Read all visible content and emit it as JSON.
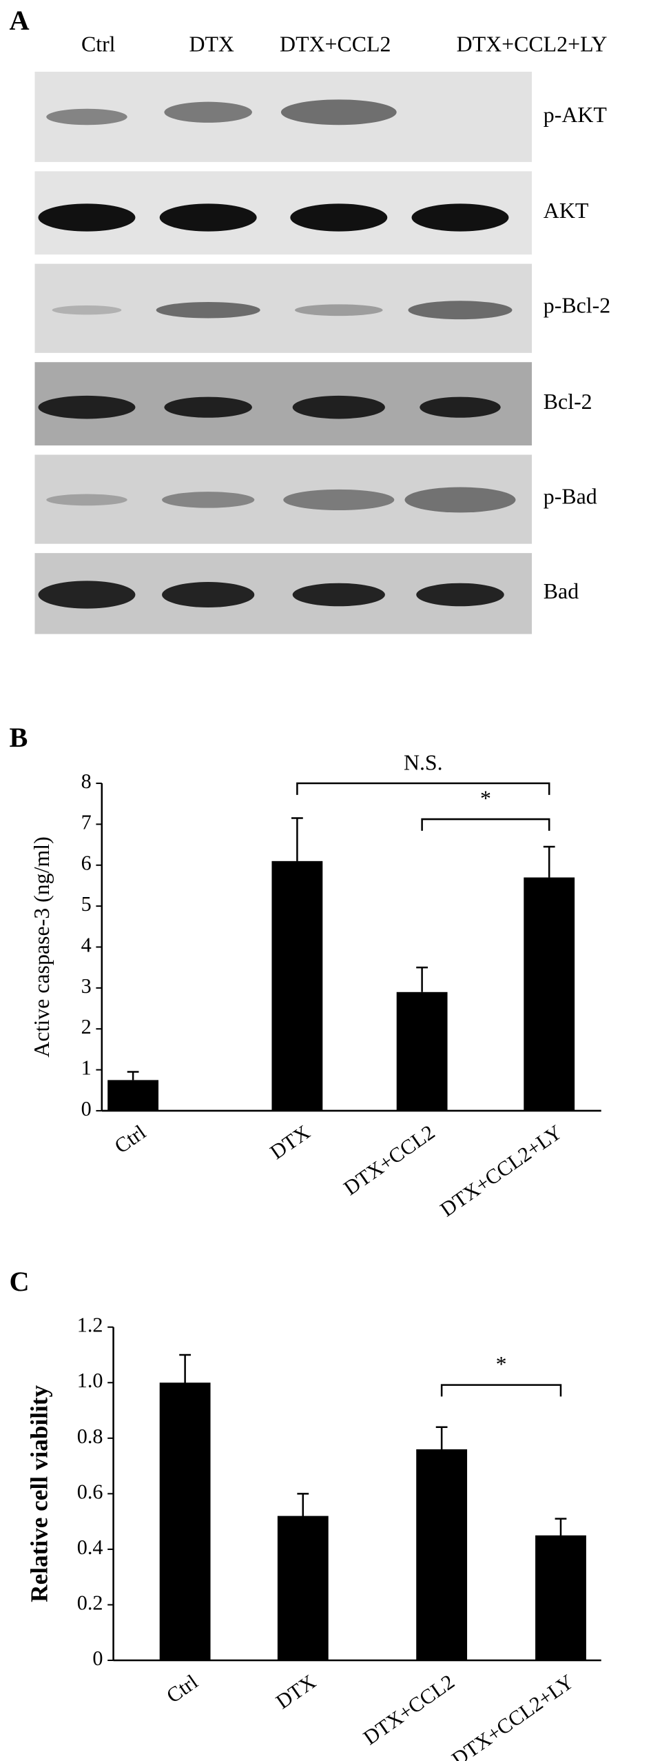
{
  "blot": {
    "panel": "A",
    "lanes": [
      "Ctrl",
      "DTX",
      "DTX+CCL2",
      "DTX+CCL2+LY"
    ],
    "bands": [
      "p-AKT",
      "AKT",
      "p-Bcl-2",
      "Bcl-2",
      "p-Bad",
      "Bad"
    ]
  },
  "chart_data": [
    {
      "type": "bar",
      "panel": "B",
      "ylabel": "Active caspase-3 (ng/ml)",
      "categories": [
        "Ctrl",
        "DTX",
        "DTX+CCL2",
        "DTX+CCL2+LY"
      ],
      "values": [
        0.75,
        6.1,
        2.9,
        5.7
      ],
      "errors": [
        0.2,
        1.05,
        0.6,
        0.75
      ],
      "color": "#000000",
      "ylim": [
        0,
        8
      ],
      "yticks": [
        0,
        1,
        2,
        3,
        4,
        5,
        6,
        7,
        8
      ],
      "annotations": [
        "N.S.",
        "*"
      ]
    },
    {
      "type": "bar",
      "panel": "C",
      "ylabel": "Relative cell viability",
      "categories": [
        "Ctrl",
        "DTX",
        "DTX+CCL2",
        "DTX+CCL2+LY"
      ],
      "values": [
        1.0,
        0.52,
        0.76,
        0.45
      ],
      "errors": [
        0.1,
        0.08,
        0.08,
        0.06
      ],
      "color": "#000000",
      "ylim": [
        0,
        1.2
      ],
      "yticks": [
        0,
        0.2,
        0.4,
        0.6,
        0.8,
        {
          "value": 1.0,
          "label": "1.0"
        },
        1.2
      ],
      "annotations": [
        "*"
      ]
    }
  ]
}
